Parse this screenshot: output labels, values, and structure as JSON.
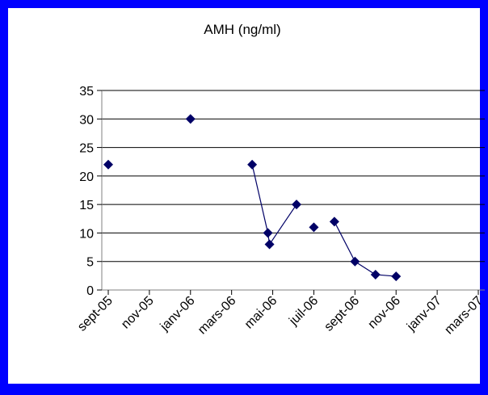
{
  "chart_data": {
    "type": "line",
    "title": "AMH (ng/ml)",
    "xlabel": "",
    "ylabel": "",
    "ylim": [
      0,
      35
    ],
    "yticks": [
      0,
      5,
      10,
      15,
      20,
      25,
      30,
      35
    ],
    "xticks": [
      "sept-05",
      "nov-05",
      "janv-06",
      "mars-06",
      "mai-06",
      "juil-06",
      "sept-06",
      "nov-06",
      "janv-07",
      "mars-07"
    ],
    "grid": "horizontal",
    "series": [
      {
        "color": "#000066",
        "points": [
          {
            "x": "sept-05",
            "y": 22
          },
          {
            "x": "janv-06",
            "y": 30
          },
          {
            "x": "avr-06",
            "y": 22
          },
          {
            "x": "mai-06",
            "y": 10
          },
          {
            "x": "mai-06",
            "y": 8
          },
          {
            "x": "juin-06",
            "y": 15
          },
          {
            "x": "juil-06",
            "y": 11
          },
          {
            "x": "août-06",
            "y": 12
          },
          {
            "x": "sept-06",
            "y": 5
          },
          {
            "x": "oct-06",
            "y": 2.7
          },
          {
            "x": "nov-06",
            "y": 2.4
          }
        ],
        "connected_segments": [
          [
            2,
            3
          ],
          [
            3,
            4
          ],
          [
            4,
            5
          ],
          [
            7,
            8
          ],
          [
            8,
            9
          ],
          [
            9,
            10
          ]
        ]
      }
    ]
  }
}
